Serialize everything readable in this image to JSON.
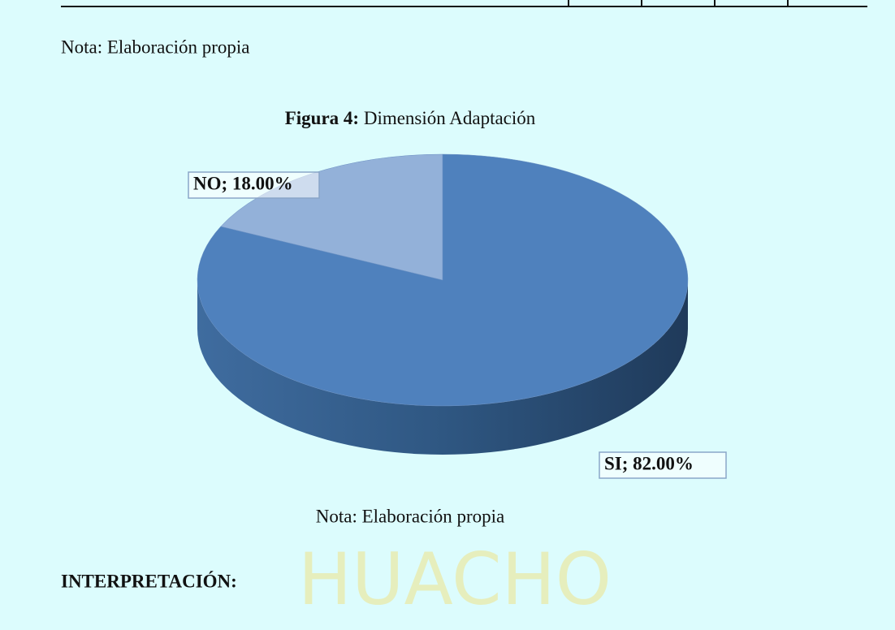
{
  "watermark": "HUACHO",
  "note_top": "Nota: Elaboración propia",
  "figure": {
    "title_bold": "Figura 4:",
    "title": "Dimensión Adaptación",
    "chart_data": {
      "type": "pie",
      "values": [
        18,
        82
      ],
      "value_labels": [
        "NO; 18.00%",
        "SI; 82.00%"
      ],
      "colors": [
        "#93b1d9",
        "#4f81bd"
      ],
      "side_color": "#2c4f78"
    },
    "note": "Nota: Elaboración propia"
  },
  "heading": "INTERPRETACIÓN:"
}
